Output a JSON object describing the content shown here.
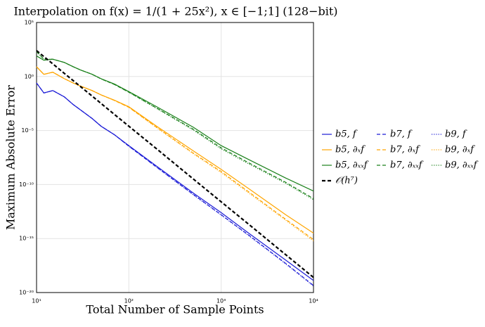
{
  "chart_data": {
    "type": "line",
    "title": "Interpolation on f(x) = 1/(1 + 25x²), x ∈ [−1;1] (128−bit)",
    "x_label": "Total Number of Sample Points",
    "y_label": "Maximum Absolute Error",
    "x_log": true,
    "y_log": true,
    "grid": true,
    "legend": "outside-right",
    "xlim": [
      10,
      10000
    ],
    "ylim": [
      1e-20,
      100000
    ],
    "xticks": [
      {
        "value": 10,
        "label": "10¹"
      },
      {
        "value": 100,
        "label": "10²"
      },
      {
        "value": 1000,
        "label": "10³"
      },
      {
        "value": 10000,
        "label": "10⁴"
      }
    ],
    "yticks": [
      {
        "value": 1e-20,
        "label": "10⁻²⁰"
      },
      {
        "value": 1e-15,
        "label": "10⁻¹⁵"
      },
      {
        "value": 1e-10,
        "label": "10⁻¹⁰"
      },
      {
        "value": 1e-05,
        "label": "10⁻⁵"
      },
      {
        "value": 1,
        "label": "10⁰"
      },
      {
        "value": 100000,
        "label": "10⁵"
      }
    ],
    "x": [
      10,
      12,
      15,
      20,
      25,
      30,
      40,
      50,
      70,
      100,
      200,
      500,
      1000,
      2000,
      5000,
      10000
    ],
    "series": [
      {
        "name": "b5, f",
        "color": "#1c1cd6",
        "style": "solid",
        "line_width": 1.2,
        "values": [
          0.25,
          0.03,
          0.05,
          0.013,
          0.0025,
          0.0008,
          0.00013,
          2.5e-05,
          4e-06,
          4e-07,
          5e-09,
          1.6e-11,
          2.5e-13,
          3e-15,
          1e-17,
          1.3e-19
        ]
      },
      {
        "name": "b5, ∂ₓf",
        "color": "#ffa500",
        "style": "solid",
        "line_width": 1.2,
        "values": [
          8,
          1.6,
          2.5,
          0.63,
          0.25,
          0.13,
          0.05,
          0.02,
          0.0063,
          0.0016,
          2.5e-05,
          1.3e-07,
          2.5e-09,
          4e-11,
          1.6e-13,
          3.2e-15
        ]
      },
      {
        "name": "b5, ∂ₓₓf",
        "color": "#1a801a",
        "style": "solid",
        "line_width": 1.2,
        "values": [
          80,
          32,
          40,
          20,
          8,
          4,
          1.6,
          0.63,
          0.2,
          0.04,
          0.0016,
          2e-05,
          4e-07,
          2e-08,
          4e-10,
          2.5e-11
        ]
      },
      {
        "name": "b7, f",
        "color": "#1c1cd6",
        "style": "dashed",
        "line_width": 1.2,
        "values": [
          0.25,
          0.03,
          0.05,
          0.013,
          0.0025,
          0.0008,
          0.00013,
          2.5e-05,
          4e-06,
          3.5e-07,
          4e-09,
          1.2e-11,
          1.6e-13,
          2e-15,
          5e-18,
          4.5e-20
        ]
      },
      {
        "name": "b7, ∂ₓf",
        "color": "#ffa500",
        "style": "dashed",
        "line_width": 1.2,
        "values": [
          8,
          1.6,
          2.5,
          0.63,
          0.25,
          0.13,
          0.05,
          0.02,
          0.006,
          0.0014,
          2e-05,
          8e-08,
          1.6e-09,
          2e-11,
          6e-14,
          8e-16
        ]
      },
      {
        "name": "b7, ∂ₓₓf",
        "color": "#1a801a",
        "style": "dashed",
        "line_width": 1.2,
        "values": [
          200,
          40,
          40,
          20,
          8,
          4,
          1.6,
          0.6,
          0.18,
          0.035,
          0.0012,
          1.3e-05,
          2.5e-07,
          1e-08,
          1.6e-10,
          5e-12
        ]
      },
      {
        "name": "b9, f",
        "color": "#1c1cd6",
        "style": "dotted",
        "line_width": 1.2,
        "values": [
          0.25,
          0.03,
          0.05,
          0.013,
          0.0025,
          0.0008,
          0.00013,
          2.5e-05,
          4e-06,
          3.5e-07,
          4e-09,
          1.1e-11,
          1.5e-13,
          1.8e-15,
          4.5e-18,
          4e-20
        ]
      },
      {
        "name": "b9, ∂ₓf",
        "color": "#ffa500",
        "style": "dotted",
        "line_width": 1.2,
        "values": [
          8,
          1.6,
          2.5,
          0.63,
          0.25,
          0.13,
          0.05,
          0.02,
          0.006,
          0.0014,
          1.8e-05,
          7e-08,
          1.3e-09,
          1.6e-11,
          5e-14,
          6e-16
        ]
      },
      {
        "name": "b9, ∂ₓₓf",
        "color": "#1a801a",
        "style": "dotted",
        "line_width": 1.2,
        "values": [
          200,
          40,
          40,
          20,
          8,
          4,
          1.6,
          0.6,
          0.18,
          0.035,
          0.0011,
          1.1e-05,
          2e-07,
          8e-09,
          1.3e-10,
          4e-12
        ]
      },
      {
        "name": "𝒪(h⁷)",
        "color": "#000000",
        "style": "dashed",
        "line_width": 2.2,
        "values": [
          250,
          70,
          14.8,
          1.95,
          0.41,
          0.115,
          0.0155,
          0.0032,
          0.0003,
          2.5e-05,
          2e-07,
          3.2e-10,
          2.5e-12,
          2e-14,
          3.2e-17,
          2.5e-19
        ]
      }
    ]
  }
}
